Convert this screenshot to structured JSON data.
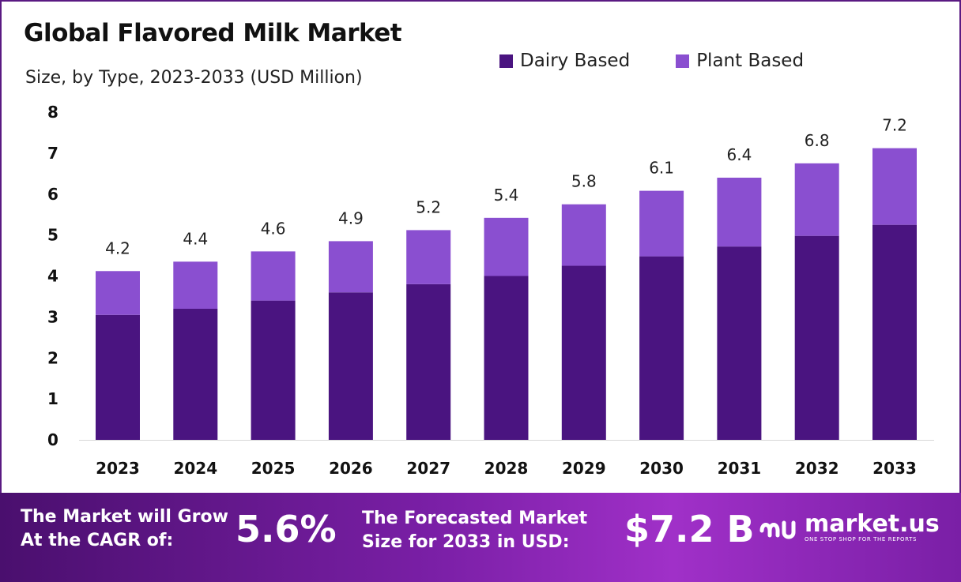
{
  "header": {
    "title": "Global Flavored Milk Market",
    "subtitle": "Size, by Type, 2023-2033 (USD Million)"
  },
  "legend": [
    {
      "label": "Dairy Based",
      "color": "#4a1480"
    },
    {
      "label": "Plant Based",
      "color": "#8a4fd0"
    }
  ],
  "chart_data": {
    "type": "bar",
    "stacked": true,
    "categories": [
      "2023",
      "2024",
      "2025",
      "2026",
      "2027",
      "2028",
      "2029",
      "2030",
      "2031",
      "2032",
      "2033"
    ],
    "series": [
      {
        "name": "Dairy Based",
        "color": "#4a1480",
        "values": [
          3.05,
          3.2,
          3.4,
          3.6,
          3.8,
          4.0,
          4.25,
          4.48,
          4.72,
          4.98,
          5.25
        ]
      },
      {
        "name": "Plant Based",
        "color": "#8a4fd0",
        "values": [
          1.07,
          1.15,
          1.2,
          1.25,
          1.32,
          1.42,
          1.5,
          1.6,
          1.68,
          1.77,
          1.87
        ]
      }
    ],
    "totals": [
      "4.2",
      "4.4",
      "4.6",
      "4.9",
      "5.2",
      "5.4",
      "5.8",
      "6.1",
      "6.4",
      "6.8",
      "7.2"
    ],
    "yticks": [
      "0",
      "1",
      "2",
      "3",
      "4",
      "5",
      "6",
      "7",
      "8"
    ],
    "ylim": [
      0,
      8
    ],
    "grid": false,
    "legend_position": "top-right"
  },
  "banner": {
    "cagr_label_line1": "The Market will Grow",
    "cagr_label_line2": "At the CAGR of:",
    "cagr_value": "5.6%",
    "forecast_label_line1": "The Forecasted Market",
    "forecast_label_line2": "Size for 2033 in USD:",
    "forecast_value": "$7.2 B",
    "brand_name": "market.us",
    "brand_tagline": "ONE STOP SHOP FOR THE REPORTS"
  }
}
